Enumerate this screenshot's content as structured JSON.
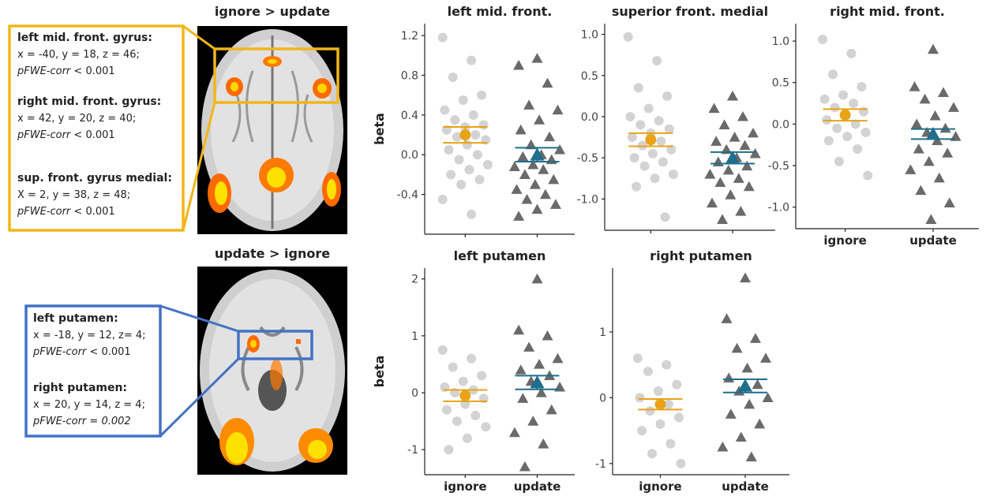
{
  "brain_maps": [
    {
      "title": "ignore > update",
      "regions": [
        {
          "name": "left mid. front. gyrus:",
          "coords": "x = -40, y = 18, z = 46;",
          "stat_label": "pFWE-corr",
          "stat_value": "< 0.001"
        },
        {
          "name": "right mid. front. gyrus:",
          "coords": "x = 42, y = 20, z = 40;",
          "stat_label": "pFWE-corr",
          "stat_value": "< 0.001"
        },
        {
          "name": "sup. front. gyrus medial:",
          "coords": "X = 2, y = 38, z = 48;",
          "stat_label": "pFWE-corr",
          "stat_value": "< 0.001"
        }
      ]
    },
    {
      "title": "update > ignore",
      "regions": [
        {
          "name": "left putamen:",
          "coords": "x = -18, y = 12, z= 4;",
          "stat_label": "pFWE-corr",
          "stat_value": "< 0.001"
        },
        {
          "name": "right putamen:",
          "coords": "x = 20, y = 14, z = 4;",
          "stat_label": "pFWE-corr",
          "stat_value": "= 0.002"
        }
      ]
    }
  ],
  "chart_data": [
    {
      "type": "strip",
      "title": "left mid. front.",
      "ylabel": "beta",
      "categories": [
        null,
        null
      ],
      "ylim": [
        -0.8,
        1.32
      ],
      "yticks": [
        -0.4,
        {
          "value": 0,
          "label": "0.0"
        },
        0.4,
        0.8,
        1.2
      ],
      "groups": [
        {
          "marker": "circle",
          "color": "#c4c4c4",
          "mean_color": "#e8a317",
          "mean": 0.2,
          "error": 0.08,
          "values": [
            1.18,
            0.95,
            0.78,
            0.6,
            0.55,
            0.45,
            0.4,
            0.35,
            0.3,
            0.28,
            0.25,
            0.2,
            0.18,
            0.15,
            0.1,
            0.05,
            0.0,
            -0.05,
            -0.1,
            -0.15,
            -0.2,
            -0.25,
            -0.3,
            -0.45,
            -0.6
          ]
        },
        {
          "marker": "triangle",
          "color": "#2b2b2b",
          "mean_color": "#1f6e8c",
          "mean": 0.0,
          "error": 0.07,
          "values": [
            0.97,
            0.9,
            0.72,
            0.5,
            0.45,
            0.35,
            0.25,
            0.18,
            0.1,
            0.05,
            0.0,
            -0.02,
            -0.05,
            -0.1,
            -0.12,
            -0.15,
            -0.2,
            -0.25,
            -0.3,
            -0.35,
            -0.4,
            -0.45,
            -0.5,
            -0.55,
            -0.62
          ]
        }
      ]
    },
    {
      "type": "strip",
      "title": "superior front. medial",
      "categories": [
        null,
        null
      ],
      "ylim": [
        -1.38,
        1.13
      ],
      "yticks": [
        {
          "value": -1,
          "label": "-1.0"
        },
        -0.5,
        {
          "value": 0,
          "label": "0.0"
        },
        0.5,
        {
          "value": 1,
          "label": "1.0"
        }
      ],
      "groups": [
        {
          "marker": "circle",
          "color": "#c4c4c4",
          "mean_color": "#e8a317",
          "mean": -0.28,
          "error": 0.08,
          "values": [
            0.97,
            0.68,
            0.35,
            0.25,
            0.1,
            0.0,
            -0.05,
            -0.1,
            -0.15,
            -0.2,
            -0.25,
            -0.3,
            -0.35,
            -0.4,
            -0.45,
            -0.5,
            -0.55,
            -0.6,
            -0.7,
            -0.75,
            -0.85,
            -1.22
          ]
        },
        {
          "marker": "triangle",
          "color": "#2b2b2b",
          "mean_color": "#1f6e8c",
          "mean": -0.5,
          "error": 0.07,
          "values": [
            0.25,
            0.1,
            0.0,
            -0.1,
            -0.2,
            -0.25,
            -0.3,
            -0.35,
            -0.4,
            -0.45,
            -0.5,
            -0.55,
            -0.6,
            -0.65,
            -0.7,
            -0.75,
            -0.8,
            -0.85,
            -0.95,
            -1.05,
            -1.15,
            -1.25
          ]
        }
      ]
    },
    {
      "type": "strip",
      "title": "right mid. front.",
      "categories": [
        "ignore",
        "update"
      ],
      "ylim": [
        -1.26,
        1.21
      ],
      "yticks": [
        {
          "value": -1,
          "label": "-1.0"
        },
        -0.5,
        {
          "value": 0,
          "label": "0.0"
        },
        0.5,
        {
          "value": 1,
          "label": "1.0"
        }
      ],
      "groups": [
        {
          "marker": "circle",
          "color": "#c4c4c4",
          "mean_color": "#e8a317",
          "mean": 0.11,
          "error": 0.07,
          "values": [
            1.02,
            0.85,
            0.6,
            0.45,
            0.35,
            0.3,
            0.25,
            0.2,
            0.15,
            0.1,
            0.05,
            0.0,
            -0.05,
            -0.1,
            -0.15,
            -0.2,
            -0.3,
            -0.45,
            -0.62
          ]
        },
        {
          "marker": "triangle",
          "color": "#2b2b2b",
          "mean_color": "#1f6e8c",
          "mean": -0.12,
          "error": 0.06,
          "values": [
            0.9,
            0.45,
            0.38,
            0.3,
            0.2,
            0.1,
            0.0,
            -0.05,
            -0.1,
            -0.15,
            -0.2,
            -0.3,
            -0.35,
            -0.45,
            -0.55,
            -0.65,
            -0.8,
            -0.95,
            -1.15
          ]
        }
      ]
    },
    {
      "type": "strip",
      "title": "left putamen",
      "ylabel": "beta",
      "categories": [
        "ignore",
        "update"
      ],
      "ylim": [
        -1.44,
        2.19
      ],
      "yticks": [
        -1,
        0,
        1,
        2
      ],
      "groups": [
        {
          "marker": "circle",
          "color": "#c4c4c4",
          "mean_color": "#e8a317",
          "mean": -0.05,
          "error": 0.1,
          "values": [
            0.75,
            0.6,
            0.45,
            0.3,
            0.2,
            0.1,
            0.05,
            0.0,
            -0.1,
            -0.2,
            -0.3,
            -0.4,
            -0.5,
            -0.6,
            -0.8,
            -1.0
          ]
        },
        {
          "marker": "triangle",
          "color": "#2b2b2b",
          "mean_color": "#1f6e8c",
          "mean": 0.18,
          "error": 0.12,
          "values": [
            2.0,
            1.1,
            1.0,
            0.8,
            0.6,
            0.5,
            0.4,
            0.3,
            0.2,
            0.1,
            0.0,
            -0.1,
            -0.3,
            -0.5,
            -0.7,
            -0.9,
            -1.3
          ]
        }
      ]
    },
    {
      "type": "strip",
      "title": "right putamen",
      "categories": [
        "ignore",
        "update"
      ],
      "ylim": [
        -1.17,
        1.97
      ],
      "yticks": [
        -1,
        0,
        1
      ],
      "groups": [
        {
          "marker": "circle",
          "color": "#c4c4c4",
          "mean_color": "#e8a317",
          "mean": -0.1,
          "error": 0.08,
          "values": [
            0.6,
            0.5,
            0.4,
            0.2,
            0.1,
            0.0,
            -0.1,
            -0.2,
            -0.3,
            -0.4,
            -0.5,
            -0.7,
            -0.85,
            -1.0
          ]
        },
        {
          "marker": "triangle",
          "color": "#2b2b2b",
          "mean_color": "#1f6e8c",
          "mean": 0.18,
          "error": 0.1,
          "values": [
            1.82,
            1.2,
            0.9,
            0.75,
            0.6,
            0.45,
            0.3,
            0.2,
            0.1,
            0.0,
            -0.1,
            -0.25,
            -0.4,
            -0.6,
            -0.75,
            -0.9
          ]
        }
      ]
    }
  ]
}
